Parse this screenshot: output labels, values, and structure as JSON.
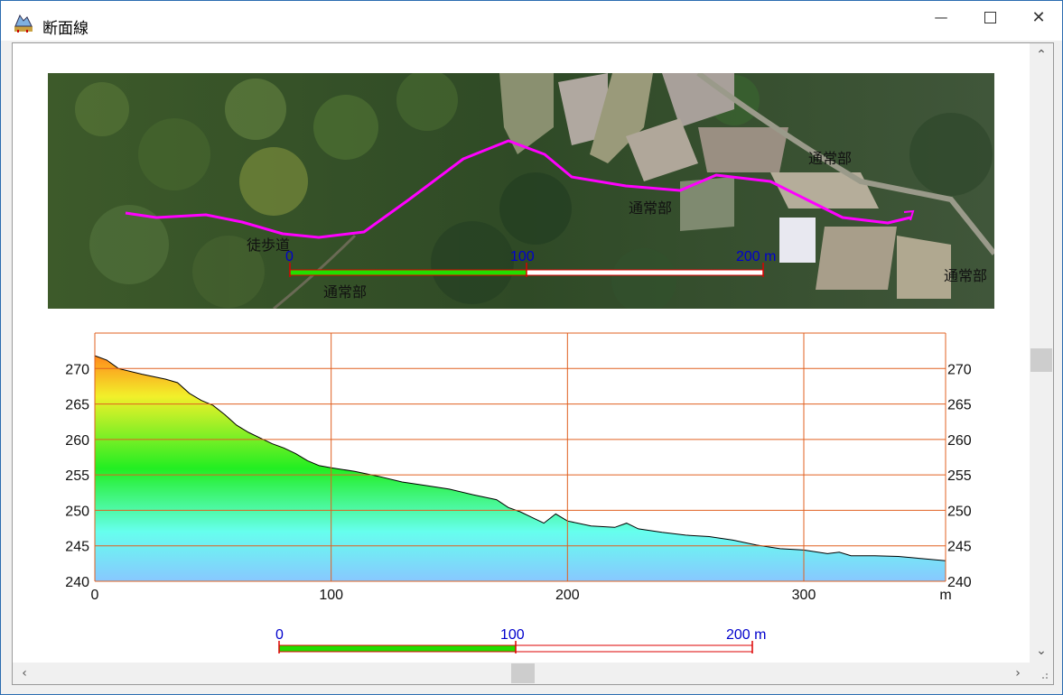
{
  "window": {
    "title": "断面線",
    "icons": {
      "app": "profile-app-icon",
      "minimize": "minimize-icon",
      "maximize": "maximize-icon",
      "close": "close-icon"
    }
  },
  "map": {
    "labels": {
      "trail": "徒歩道",
      "road_bottom": "通常部",
      "road_middle": "通常部",
      "road_top": "通常部",
      "road_right": "通常部"
    },
    "scale_bar": {
      "tick0": "0",
      "tick1": "100",
      "tick2": "200 m"
    }
  },
  "chart_data": {
    "type": "area",
    "title": "",
    "xlabel": "",
    "x_unit_label": "m",
    "ylabel": "",
    "xlim": [
      0,
      360
    ],
    "ylim": [
      240,
      275
    ],
    "x_ticks": [
      0,
      100,
      200,
      300
    ],
    "y_ticks": [
      240,
      245,
      250,
      255,
      260,
      265,
      270
    ],
    "grid": true,
    "gradient_colors": [
      "#ff8a1c",
      "#f2f02a",
      "#22ee22",
      "#66ffee",
      "#88c8ff"
    ],
    "series": [
      {
        "x": [
          0,
          5,
          10,
          20,
          30,
          35,
          40,
          45,
          50,
          55,
          60,
          65,
          70,
          75,
          80,
          85,
          90,
          95,
          100,
          110,
          120,
          130,
          140,
          150,
          160,
          170,
          175,
          180,
          185,
          190,
          195,
          200,
          210,
          220,
          225,
          230,
          240,
          250,
          260,
          270,
          280,
          290,
          300,
          310,
          315,
          320,
          330,
          340,
          350,
          360
        ],
        "y": [
          271.8,
          271.2,
          270.0,
          269.2,
          268.5,
          268.0,
          266.5,
          265.5,
          264.8,
          263.5,
          262.0,
          261.0,
          260.2,
          259.4,
          258.8,
          258.0,
          257.0,
          256.3,
          256.0,
          255.5,
          254.8,
          254.0,
          253.5,
          253.0,
          252.2,
          251.5,
          250.4,
          249.8,
          249.0,
          248.2,
          249.5,
          248.5,
          247.8,
          247.6,
          248.2,
          247.4,
          246.9,
          246.5,
          246.3,
          245.8,
          245.1,
          244.6,
          244.4,
          243.9,
          244.1,
          243.6,
          243.6,
          243.5,
          243.2,
          242.9
        ]
      }
    ]
  },
  "bottom_scale_bar": {
    "tick0": "0",
    "tick1": "100",
    "tick2": "200 m"
  },
  "colors": {
    "pink_route": "#ff00ff",
    "grid_orange": "#e06020",
    "scale_green": "#22dd00",
    "scale_red": "#dd0000",
    "scale_text_blue": "#0000cc"
  }
}
